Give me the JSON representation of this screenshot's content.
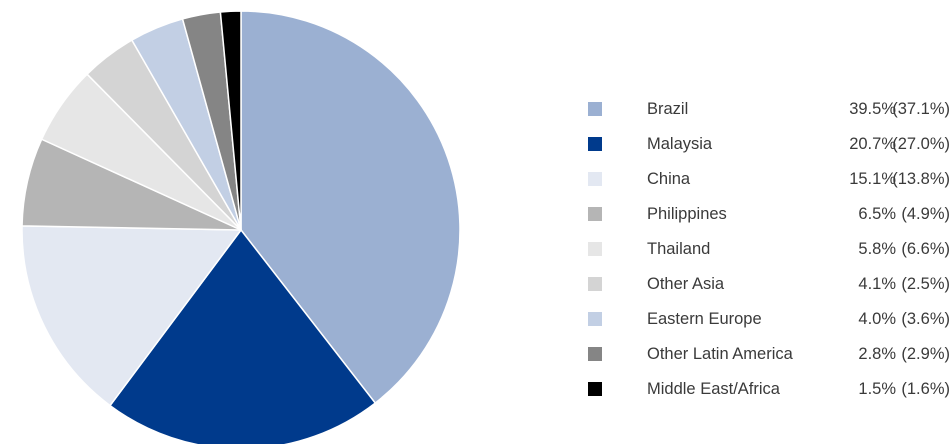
{
  "chart_data": {
    "type": "pie",
    "legend_placement": "right",
    "slices": [
      {
        "label": "Brazil",
        "value": 39.5,
        "value_label": "39.5%",
        "secondary_value": 37.1,
        "secondary_label": "(37.1%)",
        "color": "#9bb0d2"
      },
      {
        "label": "Malaysia",
        "value": 20.7,
        "value_label": "20.7%",
        "secondary_value": 27.0,
        "secondary_label": "(27.0%)",
        "color": "#003a8c"
      },
      {
        "label": "China",
        "value": 15.1,
        "value_label": "15.1%",
        "secondary_value": 13.8,
        "secondary_label": "(13.8%)",
        "color": "#e3e8f2"
      },
      {
        "label": "Philippines",
        "value": 6.5,
        "value_label": "6.5%",
        "secondary_value": 4.9,
        "secondary_label": "(4.9%)",
        "color": "#b5b5b5"
      },
      {
        "label": "Thailand",
        "value": 5.8,
        "value_label": "5.8%",
        "secondary_value": 6.6,
        "secondary_label": "(6.6%)",
        "color": "#e6e6e6"
      },
      {
        "label": "Other Asia",
        "value": 4.1,
        "value_label": "4.1%",
        "secondary_value": 2.5,
        "secondary_label": "(2.5%)",
        "color": "#d4d4d4"
      },
      {
        "label": "Eastern Europe",
        "value": 4.0,
        "value_label": "4.0%",
        "secondary_value": 3.6,
        "secondary_label": "(3.6%)",
        "color": "#c2cfe4"
      },
      {
        "label": "Other Latin America",
        "value": 2.8,
        "value_label": "2.8%",
        "secondary_value": 2.9,
        "secondary_label": "(2.9%)",
        "color": "#858585"
      },
      {
        "label": "Middle East/Africa",
        "value": 1.5,
        "value_label": "1.5%",
        "secondary_value": 1.6,
        "secondary_label": "(1.6%)",
        "color": "#000000"
      }
    ]
  }
}
